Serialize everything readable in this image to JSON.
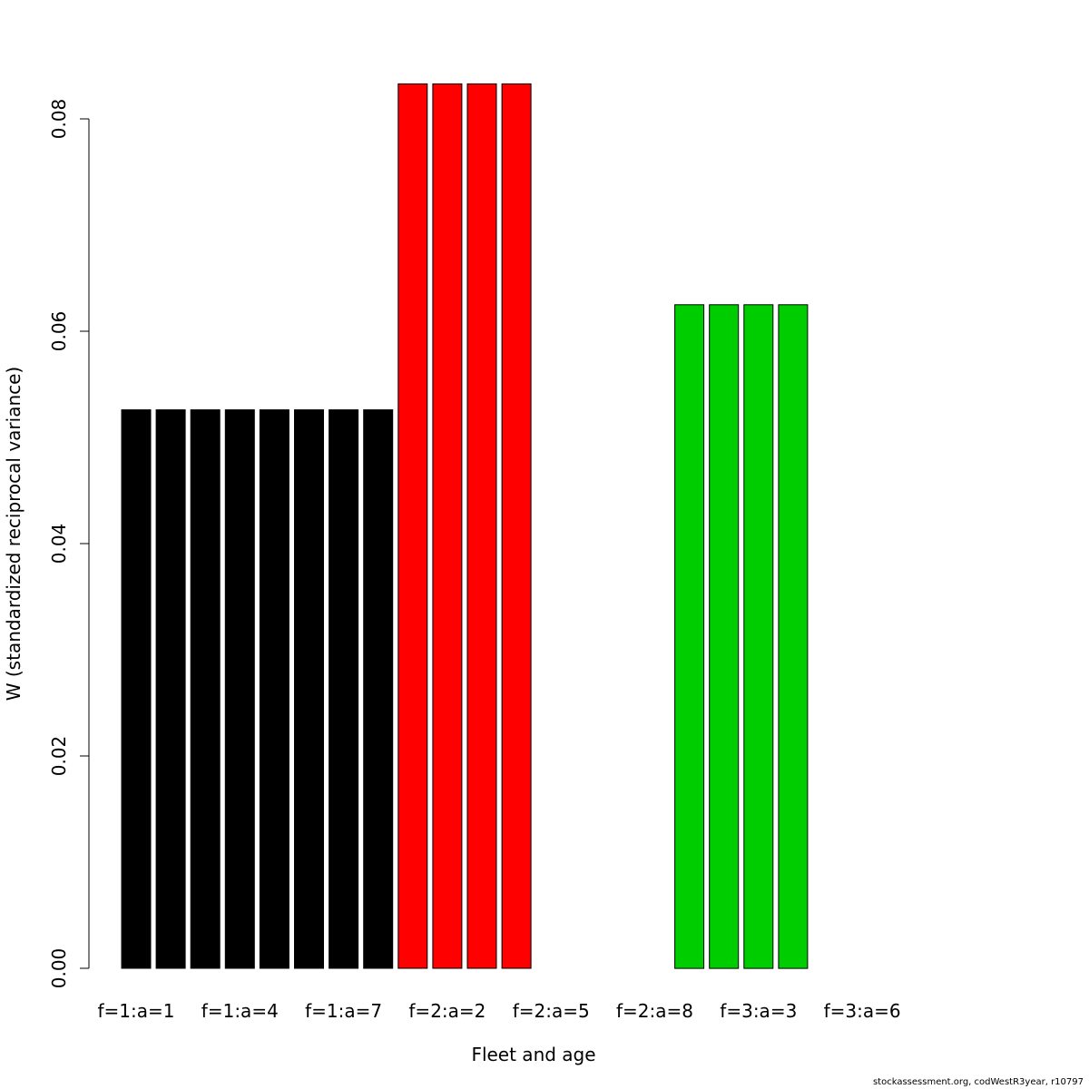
{
  "chart_data": {
    "type": "bar",
    "xlabel": "Fleet and age",
    "ylabel": "W (standardized reciprocal variance)",
    "ylim": [
      0,
      0.08
    ],
    "yticks": [
      "0.00",
      "0.02",
      "0.04",
      "0.06",
      "0.08"
    ],
    "categories": [
      "f=1:a=1",
      "f=1:a=2",
      "f=1:a=3",
      "f=1:a=4",
      "f=1:a=5",
      "f=1:a=6",
      "f=1:a=7",
      "f=1:a=8",
      "f=2:a=1",
      "f=2:a=2",
      "f=2:a=3",
      "f=2:a=4",
      "f=2:a=5",
      "f=2:a=6",
      "f=2:a=7",
      "f=2:a=8",
      "f=3:a=1",
      "f=3:a=2",
      "f=3:a=3",
      "f=3:a=4",
      "f=3:a=5",
      "f=3:a=6"
    ],
    "visible_tick_labels": [
      "f=1:a=1",
      "f=1:a=4",
      "f=1:a=7",
      "f=2:a=2",
      "f=2:a=5",
      "f=2:a=8",
      "f=3:a=3",
      "f=3:a=6"
    ],
    "values": [
      0.0526,
      0.0526,
      0.0526,
      0.0526,
      0.0526,
      0.0526,
      0.0526,
      0.0526,
      0.0833,
      0.0833,
      0.0833,
      0.0833,
      0,
      0,
      0,
      0,
      0.0625,
      0.0625,
      0.0625,
      0.0625,
      0,
      0
    ],
    "fleet_colors": {
      "1": "#000000",
      "2": "#ff0000",
      "3": "#00cd00"
    },
    "bar_fleet": [
      1,
      1,
      1,
      1,
      1,
      1,
      1,
      1,
      2,
      2,
      2,
      2,
      2,
      2,
      2,
      2,
      3,
      3,
      3,
      3,
      3,
      3
    ],
    "grid": false
  },
  "footer": "stockassessment.org, codWestR3year, r10797"
}
